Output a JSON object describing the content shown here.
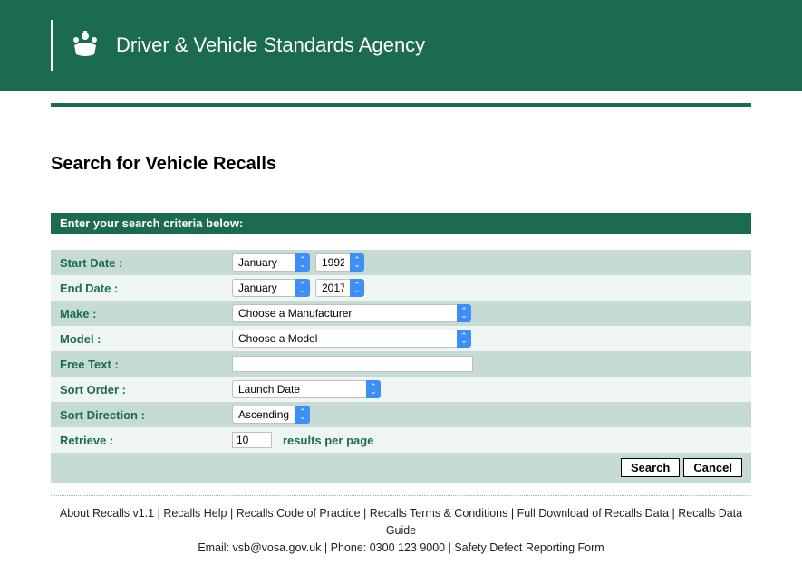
{
  "header": {
    "title": "Driver & Vehicle Standards Agency"
  },
  "page": {
    "title": "Search for Vehicle Recalls",
    "criteria_header": "Enter your search criteria below:"
  },
  "form": {
    "start_date": {
      "label": "Start Date :",
      "month": "January",
      "year": "1992"
    },
    "end_date": {
      "label": "End Date :",
      "month": "January",
      "year": "2017"
    },
    "make": {
      "label": "Make :",
      "value": "Choose a Manufacturer"
    },
    "model": {
      "label": "Model :",
      "value": "Choose a Model"
    },
    "free_text": {
      "label": "Free Text :",
      "value": ""
    },
    "sort_order": {
      "label": "Sort Order :",
      "value": "Launch Date"
    },
    "sort_dir": {
      "label": "Sort Direction :",
      "value": "Ascending"
    },
    "retrieve": {
      "label": "Retrieve :",
      "value": "10",
      "suffix": "results per page"
    }
  },
  "buttons": {
    "search": "Search",
    "cancel": "Cancel"
  },
  "footer": {
    "links": {
      "about": "About Recalls v1.1",
      "help": "Recalls Help",
      "code": "Recalls Code of Practice",
      "terms": "Recalls Terms & Conditions",
      "download": "Full Download of Recalls Data",
      "guide": "Recalls Data Guide"
    },
    "contact": "Email: vsb@vosa.gov.uk | Phone: 0300 123 9000 | ",
    "report": "Safety Defect Reporting Form"
  },
  "widths": {
    "month_select": 70,
    "year_select": 38,
    "make_select": 248,
    "model_select": 248,
    "freetext_input": 266,
    "sortorder_select": 148,
    "sortdir_select": 70,
    "retrieve_input": 44
  }
}
